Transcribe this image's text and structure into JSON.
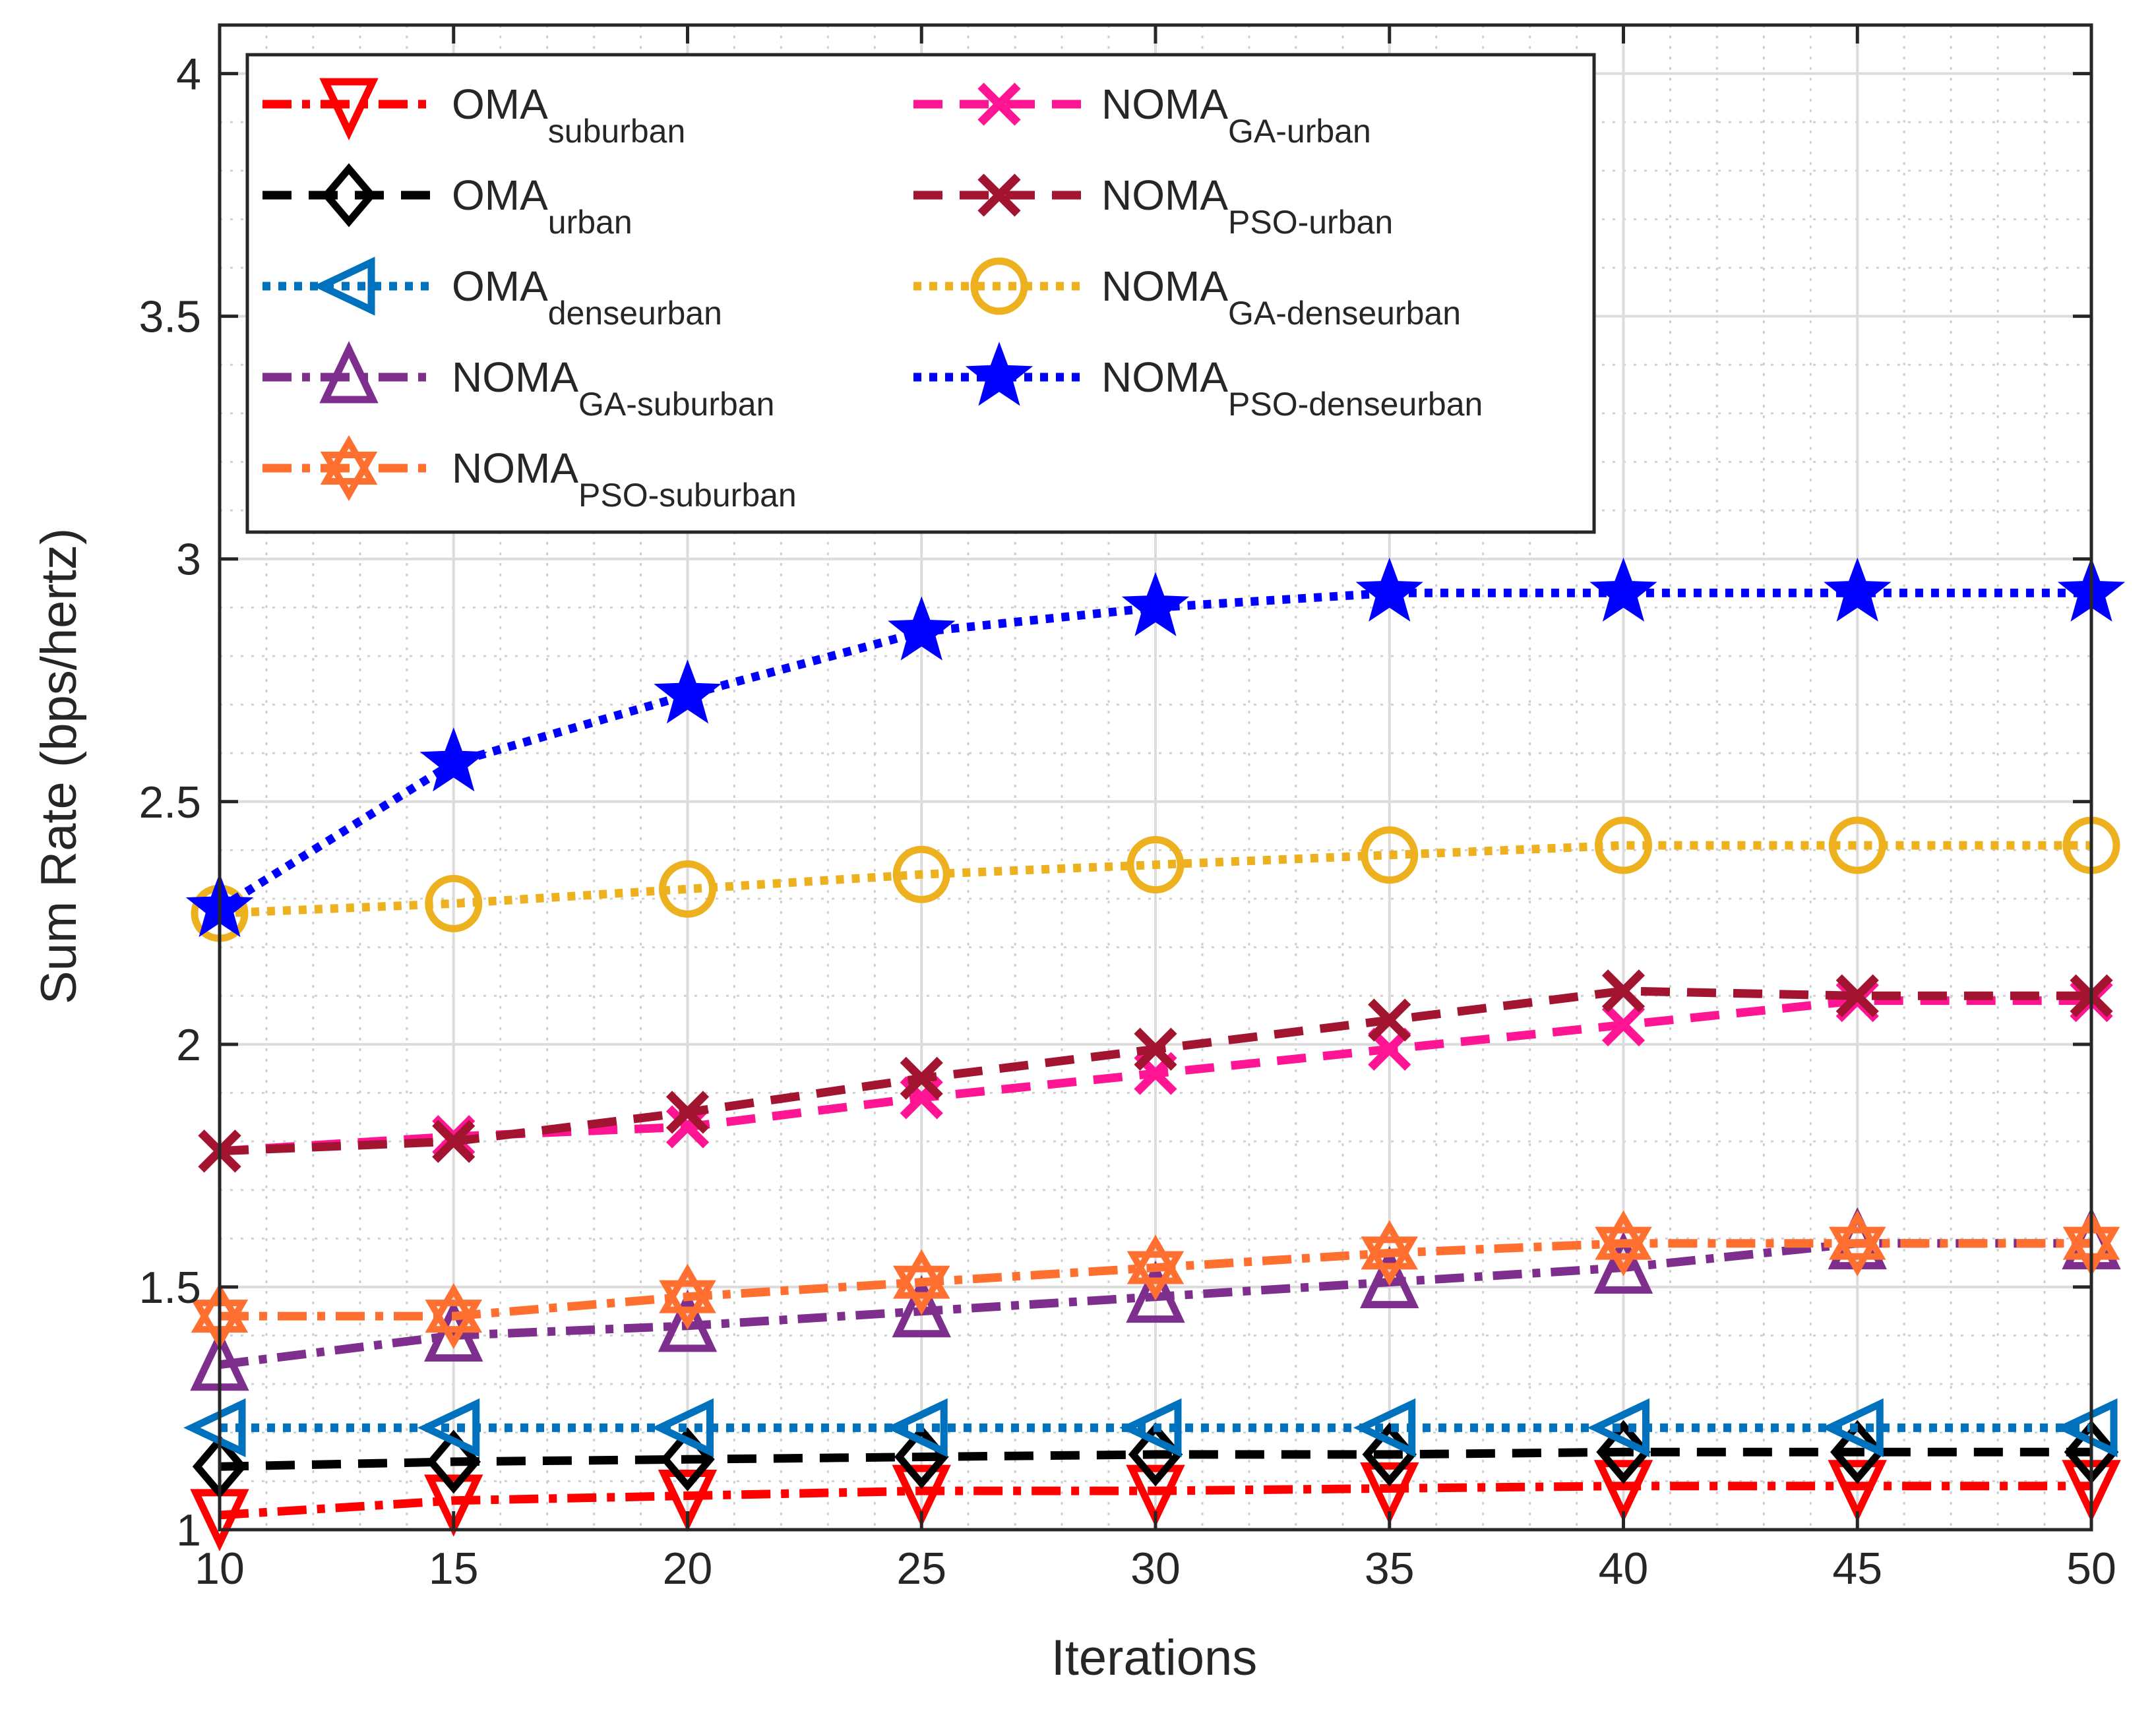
{
  "chart_data": {
    "type": "line",
    "title": "",
    "xlabel": "Iterations",
    "ylabel": "Sum Rate (bps/hertz)",
    "xlim": [
      10,
      50
    ],
    "ylim": [
      1,
      4.1
    ],
    "x": [
      10,
      15,
      20,
      25,
      30,
      35,
      40,
      45,
      50
    ],
    "x_ticks": [
      "10",
      "15",
      "20",
      "25",
      "30",
      "35",
      "40",
      "45",
      "50"
    ],
    "y_ticks": [
      "1",
      "1.5",
      "2",
      "2.5",
      "3",
      "3.5",
      "4"
    ],
    "grid": true,
    "legend_position": "top-left",
    "series": [
      {
        "id": "oma-suburban",
        "name": "OMA",
        "sub": "suburban",
        "color": "#ff0000",
        "dash": "dashdot",
        "marker": "triangle-down",
        "values": [
          1.03,
          1.06,
          1.07,
          1.08,
          1.08,
          1.085,
          1.09,
          1.09,
          1.09
        ]
      },
      {
        "id": "oma-urban",
        "name": "OMA",
        "sub": "urban",
        "color": "#000000",
        "dash": "dash",
        "marker": "diamond",
        "values": [
          1.13,
          1.14,
          1.145,
          1.15,
          1.155,
          1.155,
          1.16,
          1.16,
          1.16
        ]
      },
      {
        "id": "oma-denseurban",
        "name": "OMA",
        "sub": "denseurban",
        "color": "#0072bd",
        "dash": "dot",
        "marker": "triangle-left",
        "values": [
          1.21,
          1.21,
          1.21,
          1.21,
          1.21,
          1.21,
          1.21,
          1.21,
          1.21
        ]
      },
      {
        "id": "noma-ga-suburban",
        "name": "NOMA",
        "sub": "GA-suburban",
        "color": "#7e2f8e",
        "dash": "dashdot",
        "marker": "triangle-up",
        "values": [
          1.34,
          1.4,
          1.42,
          1.45,
          1.48,
          1.51,
          1.54,
          1.59,
          1.59
        ]
      },
      {
        "id": "noma-pso-suburban",
        "name": "NOMA",
        "sub": "PSO-suburban",
        "color": "#ff6f30",
        "dash": "dashdot",
        "marker": "hexagram",
        "values": [
          1.44,
          1.44,
          1.48,
          1.51,
          1.54,
          1.57,
          1.59,
          1.59,
          1.59
        ]
      },
      {
        "id": "noma-ga-urban",
        "name": "NOMA",
        "sub": "GA-urban",
        "color": "#ff1493",
        "dash": "dash",
        "marker": "x",
        "values": [
          1.78,
          1.81,
          1.83,
          1.89,
          1.94,
          1.99,
          2.04,
          2.09,
          2.09
        ]
      },
      {
        "id": "noma-pso-urban",
        "name": "NOMA",
        "sub": "PSO-urban",
        "color": "#a2142f",
        "dash": "dash",
        "marker": "x",
        "values": [
          1.78,
          1.8,
          1.86,
          1.93,
          1.99,
          2.05,
          2.11,
          2.1,
          2.1
        ]
      },
      {
        "id": "noma-ga-denseurban",
        "name": "NOMA",
        "sub": "GA-denseurban",
        "color": "#edb120",
        "dash": "dot",
        "marker": "circle",
        "values": [
          2.27,
          2.29,
          2.32,
          2.35,
          2.37,
          2.39,
          2.41,
          2.41,
          2.41
        ]
      },
      {
        "id": "noma-pso-denseurban",
        "name": "NOMA",
        "sub": "PSO-denseurban",
        "color": "#0000ff",
        "dash": "dot",
        "marker": "star",
        "values": [
          2.28,
          2.58,
          2.72,
          2.85,
          2.9,
          2.93,
          2.93,
          2.93,
          2.93
        ]
      }
    ]
  }
}
